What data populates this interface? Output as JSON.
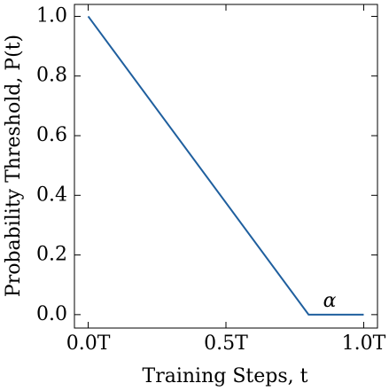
{
  "chart_data": {
    "type": "line",
    "x_label": "Training Steps, t",
    "y_label": "Probability Threshold, P(t)",
    "annotation": "α",
    "x": [
      0,
      0.8,
      1.0
    ],
    "series": [
      {
        "color": "#1f5f9e",
        "values": [
          1.0,
          0.0,
          0.0
        ]
      }
    ],
    "xlim": [
      -0.05,
      1.05
    ],
    "ylim": [
      -0.045,
      1.04
    ],
    "xticks": [
      {
        "value": 0,
        "label": "0.0T"
      },
      {
        "value": 0.5,
        "label": "0.5T"
      },
      {
        "value": 1.0,
        "label": "1.0T"
      }
    ],
    "yticks": [
      {
        "value": 0,
        "label": "0.0"
      },
      {
        "value": 0.2,
        "label": "0.2"
      },
      {
        "value": 0.4,
        "label": "0.4"
      },
      {
        "value": 0.6,
        "label": "0.6"
      },
      {
        "value": 0.8,
        "label": "0.8"
      },
      {
        "value": 1.0,
        "label": "1.0"
      }
    ]
  }
}
